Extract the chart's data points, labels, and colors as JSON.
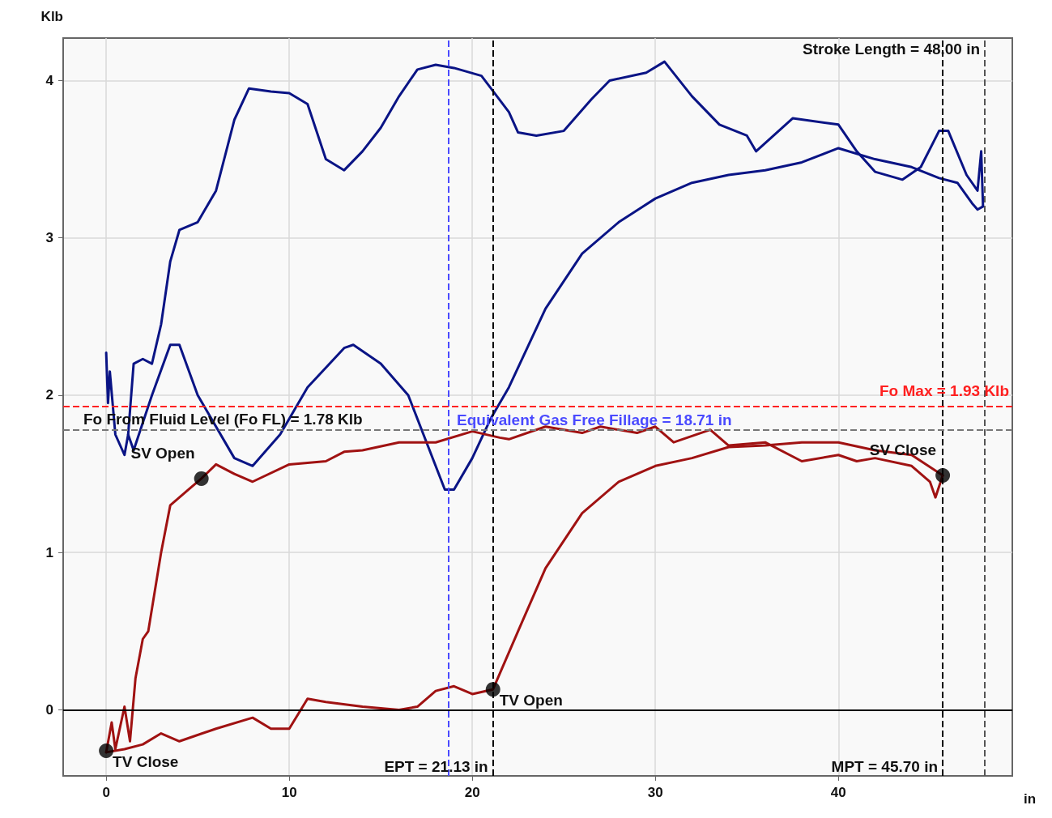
{
  "chart_data": {
    "type": "line",
    "xlabel": "in",
    "ylabel": "Klb",
    "xlim": [
      -2.35,
      49.5
    ],
    "ylim": [
      -0.42,
      4.27
    ],
    "xticks": [
      0,
      10,
      20,
      30,
      40
    ],
    "yticks": [
      0,
      1,
      2,
      3,
      4
    ],
    "grid": true,
    "marker": "none",
    "line_style": "solid",
    "series": [
      {
        "color": "#0a1485",
        "x": [
          1.2,
          1.5,
          2,
          2.5,
          3,
          3.5,
          4,
          5,
          6,
          7,
          7.8,
          9,
          10,
          11,
          12,
          13,
          14,
          15,
          16,
          17,
          18,
          19,
          20.5,
          22,
          22.5,
          23.5,
          25,
          26.5,
          27.5,
          29.5,
          30.5,
          32,
          33.5,
          35,
          35.5,
          37.5,
          40,
          41,
          42,
          43.5,
          44.5,
          45.5,
          46,
          47,
          47.6,
          47.8,
          47.9
        ],
        "values": [
          1.75,
          2.2,
          2.23,
          2.2,
          2.45,
          2.85,
          3.05,
          3.1,
          3.3,
          3.75,
          3.95,
          3.93,
          3.92,
          3.85,
          3.5,
          3.43,
          3.55,
          3.7,
          3.9,
          4.07,
          4.1,
          4.08,
          4.03,
          3.8,
          3.67,
          3.65,
          3.68,
          3.88,
          4.0,
          4.05,
          4.12,
          3.9,
          3.72,
          3.65,
          3.55,
          3.76,
          3.72,
          3.55,
          3.42,
          3.37,
          3.45,
          3.68,
          3.68,
          3.4,
          3.3,
          3.55,
          3.2
        ]
      },
      {
        "color": "#0a1485",
        "x": [
          0,
          0.1,
          0.2,
          0.5,
          1,
          1.2,
          1.5,
          2.5,
          3.5,
          4,
          5,
          7,
          8,
          9.5,
          11,
          13,
          13.5,
          15,
          16.5,
          17.5,
          18.5,
          19,
          20,
          21,
          22,
          24,
          26,
          28,
          30,
          32,
          34,
          36,
          38,
          40,
          42,
          44,
          45.5,
          46.5,
          47.3,
          47.6,
          47.9
        ],
        "values": [
          2.27,
          1.95,
          2.15,
          1.75,
          1.62,
          1.75,
          1.65,
          2.0,
          2.32,
          2.32,
          2.0,
          1.6,
          1.55,
          1.75,
          2.05,
          2.3,
          2.32,
          2.2,
          2.0,
          1.7,
          1.4,
          1.4,
          1.6,
          1.85,
          2.05,
          2.55,
          2.9,
          3.1,
          3.25,
          3.35,
          3.4,
          3.43,
          3.48,
          3.57,
          3.5,
          3.45,
          3.38,
          3.35,
          3.22,
          3.18,
          3.2
        ]
      },
      {
        "color": "#a01212",
        "x": [
          0,
          0.3,
          0.5,
          1,
          1.3,
          1.6,
          2,
          2.3,
          3,
          3.5,
          4.5,
          5.2,
          6,
          7,
          8,
          10,
          12,
          13,
          14,
          16,
          18,
          20,
          21.5,
          22,
          24,
          26,
          27,
          29,
          30,
          31,
          33,
          34,
          36,
          38,
          40,
          41,
          42,
          44,
          45,
          45.3,
          45.7
        ],
        "values": [
          -0.27,
          -0.08,
          -0.25,
          0.02,
          -0.2,
          0.2,
          0.45,
          0.5,
          1.0,
          1.3,
          1.4,
          1.47,
          1.56,
          1.5,
          1.45,
          1.56,
          1.58,
          1.64,
          1.65,
          1.7,
          1.7,
          1.77,
          1.73,
          1.72,
          1.8,
          1.76,
          1.8,
          1.76,
          1.8,
          1.7,
          1.78,
          1.68,
          1.7,
          1.58,
          1.62,
          1.58,
          1.6,
          1.55,
          1.45,
          1.35,
          1.49
        ]
      },
      {
        "color": "#a01212",
        "x": [
          0,
          1,
          2,
          3,
          4,
          6,
          8,
          9,
          10,
          11,
          12,
          14,
          16,
          17,
          18,
          19,
          20,
          21.13,
          22.5,
          24,
          26,
          28,
          30,
          32,
          34,
          36,
          38,
          40,
          42,
          44,
          45.7
        ],
        "values": [
          -0.27,
          -0.25,
          -0.22,
          -0.15,
          -0.2,
          -0.12,
          -0.05,
          -0.12,
          -0.12,
          0.07,
          0.05,
          0.02,
          0.0,
          0.02,
          0.12,
          0.15,
          0.1,
          0.13,
          0.5,
          0.9,
          1.25,
          1.45,
          1.55,
          1.6,
          1.67,
          1.68,
          1.7,
          1.7,
          1.65,
          1.62,
          1.49
        ]
      },
      {
        "type": "scatter",
        "marker": "circle",
        "color": "#000000",
        "x": [
          5.2,
          0,
          21.13,
          45.7
        ],
        "values": [
          1.47,
          -0.26,
          0.13,
          1.49
        ]
      }
    ],
    "ref_lines": [
      {
        "axis": "x",
        "value": 18.71,
        "label": "Equivalent Gas Free Fillage = 18.71 in",
        "color": "#4a4aff",
        "line_style": "dashed"
      },
      {
        "axis": "x",
        "value": 21.13,
        "label": "EPT = 21.13 in",
        "color": "#000000",
        "line_style": "dashed"
      },
      {
        "axis": "x",
        "value": 45.7,
        "label": "MPT = 45.70 in",
        "color": "#000000",
        "line_style": "dashed"
      },
      {
        "axis": "x",
        "value": 48,
        "label": "Stroke Length = 48.00 in",
        "color": "#555555",
        "line_style": "dashed"
      },
      {
        "axis": "y",
        "value": 1.78,
        "label": "Fo From Fluid Level (Fo FL) = 1.78 Klb",
        "color": "#777777",
        "line_style": "dashed"
      },
      {
        "axis": "y",
        "value": 1.93,
        "label": "Fo Max = 1.93 Klb",
        "color": "#ff2020",
        "line_style": "dashed"
      },
      {
        "axis": "y",
        "value": 0,
        "color": "#000000",
        "line_style": "solid"
      }
    ],
    "annotations": [
      {
        "text": "SV Open",
        "x": 5.2,
        "y": 1.47
      },
      {
        "text": "TV Close",
        "x": 0,
        "y": -0.26
      },
      {
        "text": "TV Open",
        "x": 21.13,
        "y": 0.13
      },
      {
        "text": "SV Close",
        "x": 45.7,
        "y": 1.49
      }
    ]
  }
}
